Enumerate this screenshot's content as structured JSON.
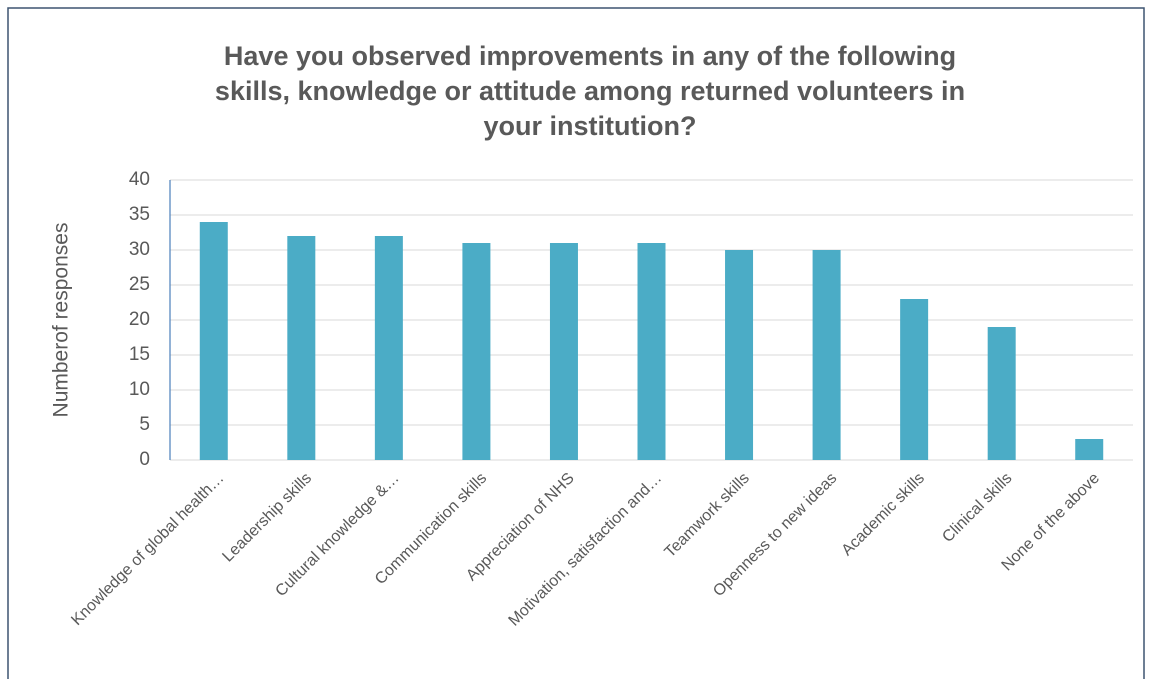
{
  "chart_data": {
    "type": "bar",
    "title": [
      "Have you observed improvements in any of the following",
      "skills, knowledge or attitude among returned volunteers in",
      "your institution?"
    ],
    "y_label": "Numberof responses",
    "categories": [
      "Knowledge of global health…",
      "Leadership skills",
      "Cultural knowledge &…",
      "Communication skills",
      "Appreciation of NHS",
      "Motivation, satisfaction and…",
      "Teamwork skills",
      "Openness to new ideas",
      "Academic skills",
      "Clinical skills",
      "None of the above"
    ],
    "values": [
      34,
      32,
      32,
      31,
      31,
      31,
      30,
      30,
      23,
      19,
      3
    ],
    "color": "#4bacc6",
    "ylim": [
      0,
      40
    ],
    "yticks": [
      0,
      5,
      10,
      15,
      20,
      25,
      30,
      35,
      40
    ],
    "grid": true
  }
}
